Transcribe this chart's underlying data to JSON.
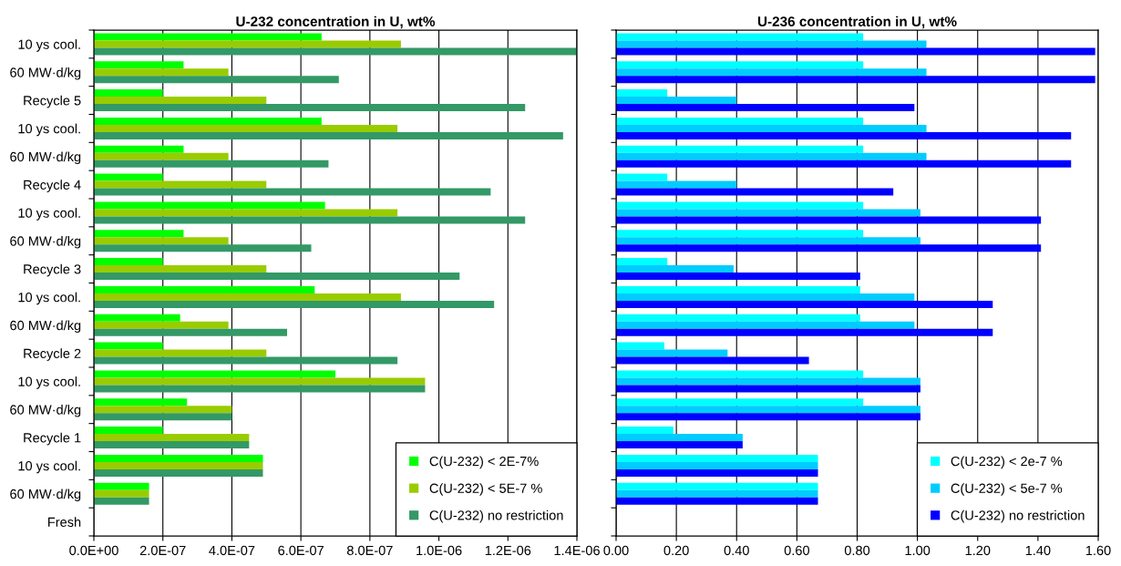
{
  "chart_data": [
    {
      "type": "bar",
      "orientation": "horizontal",
      "title": "U-232 concentration in U, wt%",
      "categories": [
        "10 ys cool.",
        "60 MW·d/kg",
        "Recycle 5",
        "10 ys cool.",
        "60 MW·d/kg",
        "Recycle 4",
        "10 ys cool.",
        "60 MW·d/kg",
        "Recycle 3",
        "10 ys cool.",
        "60 MW·d/kg",
        "Recycle 2",
        "10 ys cool.",
        "60 MW·d/kg",
        "Recycle 1",
        "10 ys cool.",
        "60 MW·d/kg",
        "Fresh"
      ],
      "series": [
        {
          "name": "C(U-232) < 2E-7%",
          "color": "#00ff00",
          "values": [
            6.6e-07,
            2.6e-07,
            2e-07,
            6.6e-07,
            2.6e-07,
            2e-07,
            6.7e-07,
            2.6e-07,
            2e-07,
            6.4e-07,
            2.5e-07,
            2e-07,
            7e-07,
            2.7e-07,
            2e-07,
            4.9e-07,
            1.6e-07,
            0
          ]
        },
        {
          "name": "C(U-232) < 5E-7 %",
          "color": "#99cc00",
          "values": [
            8.9e-07,
            3.9e-07,
            5e-07,
            8.8e-07,
            3.9e-07,
            5e-07,
            8.8e-07,
            3.9e-07,
            5e-07,
            8.9e-07,
            3.9e-07,
            5e-07,
            9.6e-07,
            4e-07,
            4.5e-07,
            4.9e-07,
            1.6e-07,
            0
          ]
        },
        {
          "name": "C(U-232) no restriction",
          "color": "#339966",
          "values": [
            1.4e-06,
            7.1e-07,
            1.25e-06,
            1.36e-06,
            6.8e-07,
            1.15e-06,
            1.25e-06,
            6.3e-07,
            1.06e-06,
            1.16e-06,
            5.6e-07,
            8.8e-07,
            9.6e-07,
            4e-07,
            4.5e-07,
            4.9e-07,
            1.6e-07,
            0
          ]
        }
      ],
      "xlim": [
        0,
        1.4e-06
      ],
      "xticks": [
        {
          "value": 0,
          "label": "0.0E+00"
        },
        {
          "value": 2e-07,
          "label": "2.0E-07"
        },
        {
          "value": 4e-07,
          "label": "4.0E-07"
        },
        {
          "value": 6e-07,
          "label": "6.0E-07"
        },
        {
          "value": 8e-07,
          "label": "8.0E-07"
        },
        {
          "value": 1e-06,
          "label": "1.0E-06"
        },
        {
          "value": 1.2e-06,
          "label": "1.2E-06"
        },
        {
          "value": 1.4e-06,
          "label": "1.4E-06"
        }
      ],
      "grid": "x",
      "legend": "bottom right"
    },
    {
      "type": "bar",
      "orientation": "horizontal",
      "title": "U-236 concentration in U, wt%",
      "categories": [
        null,
        null,
        null,
        null,
        null,
        null,
        null,
        null,
        null,
        null,
        null,
        null,
        null,
        null,
        null,
        null,
        null,
        null
      ],
      "series": [
        {
          "name": "C(U-232) < 2e-7 %",
          "color": "#00ffff",
          "values": [
            0.82,
            0.82,
            0.17,
            0.82,
            0.82,
            0.17,
            0.82,
            0.82,
            0.17,
            0.81,
            0.81,
            0.16,
            0.82,
            0.82,
            0.19,
            0.67,
            0.67,
            0
          ]
        },
        {
          "name": "C(U-232) < 5e-7 %",
          "color": "#00ccff",
          "values": [
            1.03,
            1.03,
            0.4,
            1.03,
            1.03,
            0.4,
            1.01,
            1.01,
            0.39,
            0.99,
            0.99,
            0.37,
            1.01,
            1.01,
            0.42,
            0.67,
            0.67,
            0
          ]
        },
        {
          "name": "C(U-232) no restriction",
          "color": "#0000ff",
          "values": [
            1.59,
            1.59,
            0.99,
            1.51,
            1.51,
            0.92,
            1.41,
            1.41,
            0.81,
            1.25,
            1.25,
            0.64,
            1.01,
            1.01,
            0.42,
            0.67,
            0.67,
            0
          ]
        }
      ],
      "xlim": [
        0,
        1.6
      ],
      "xticks": [
        {
          "value": 0,
          "label": "0.00"
        },
        {
          "value": 0.2,
          "label": "0.20"
        },
        {
          "value": 0.4,
          "label": "0.40"
        },
        {
          "value": 0.6,
          "label": "0.60"
        },
        {
          "value": 0.8,
          "label": "0.80"
        },
        {
          "value": 1.0,
          "label": "1.00"
        },
        {
          "value": 1.2,
          "label": "1.20"
        },
        {
          "value": 1.4,
          "label": "1.40"
        },
        {
          "value": 1.6,
          "label": "1.60"
        }
      ],
      "grid": "x",
      "legend": "bottom right"
    }
  ]
}
